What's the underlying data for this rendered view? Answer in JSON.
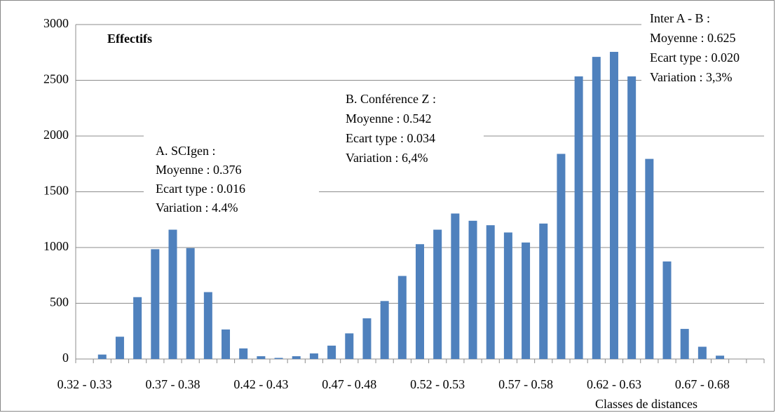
{
  "chart_data": {
    "type": "bar",
    "title": "Effectifs",
    "x_label": "Classes de distances",
    "categories": [
      "0.32 - 0.33",
      null,
      null,
      null,
      null,
      "0.37 - 0.38",
      null,
      null,
      null,
      null,
      "0.42 - 0.43",
      null,
      null,
      null,
      null,
      "0.47 - 0.48",
      null,
      null,
      null,
      null,
      "0.52 - 0.53",
      null,
      null,
      null,
      null,
      "0.57 - 0.58",
      null,
      null,
      null,
      null,
      "0.62 - 0.63",
      null,
      null,
      null,
      null,
      "0.67 - 0.68",
      null,
      null,
      null
    ],
    "values": [
      0,
      40,
      200,
      555,
      985,
      1160,
      995,
      600,
      265,
      95,
      25,
      10,
      25,
      50,
      120,
      230,
      365,
      520,
      745,
      1030,
      1160,
      1305,
      1240,
      1200,
      1135,
      1045,
      1215,
      1840,
      2535,
      2710,
      2755,
      2535,
      1795,
      875,
      270,
      110,
      30,
      0,
      0
    ],
    "color": "#4f81bd",
    "ylim": [
      0,
      3000
    ],
    "yticks": [
      0,
      500,
      1000,
      1500,
      2000,
      2500,
      3000
    ],
    "grid": true,
    "annotations": [
      {
        "lines": [
          "A. SCIgen :",
          "Moyenne : 0.376",
          "Ecart type :  0.016",
          "Variation :  4.4%"
        ]
      },
      {
        "lines": [
          "B. Conférence Z :",
          "Moyenne  : 0.542",
          "Ecart type : 0.034",
          "Variation : 6,4%"
        ]
      },
      {
        "lines": [
          "Inter A - B :",
          "Moyenne  : 0.625",
          "Ecart type : 0.020",
          "Variation : 3,3%"
        ]
      }
    ]
  }
}
